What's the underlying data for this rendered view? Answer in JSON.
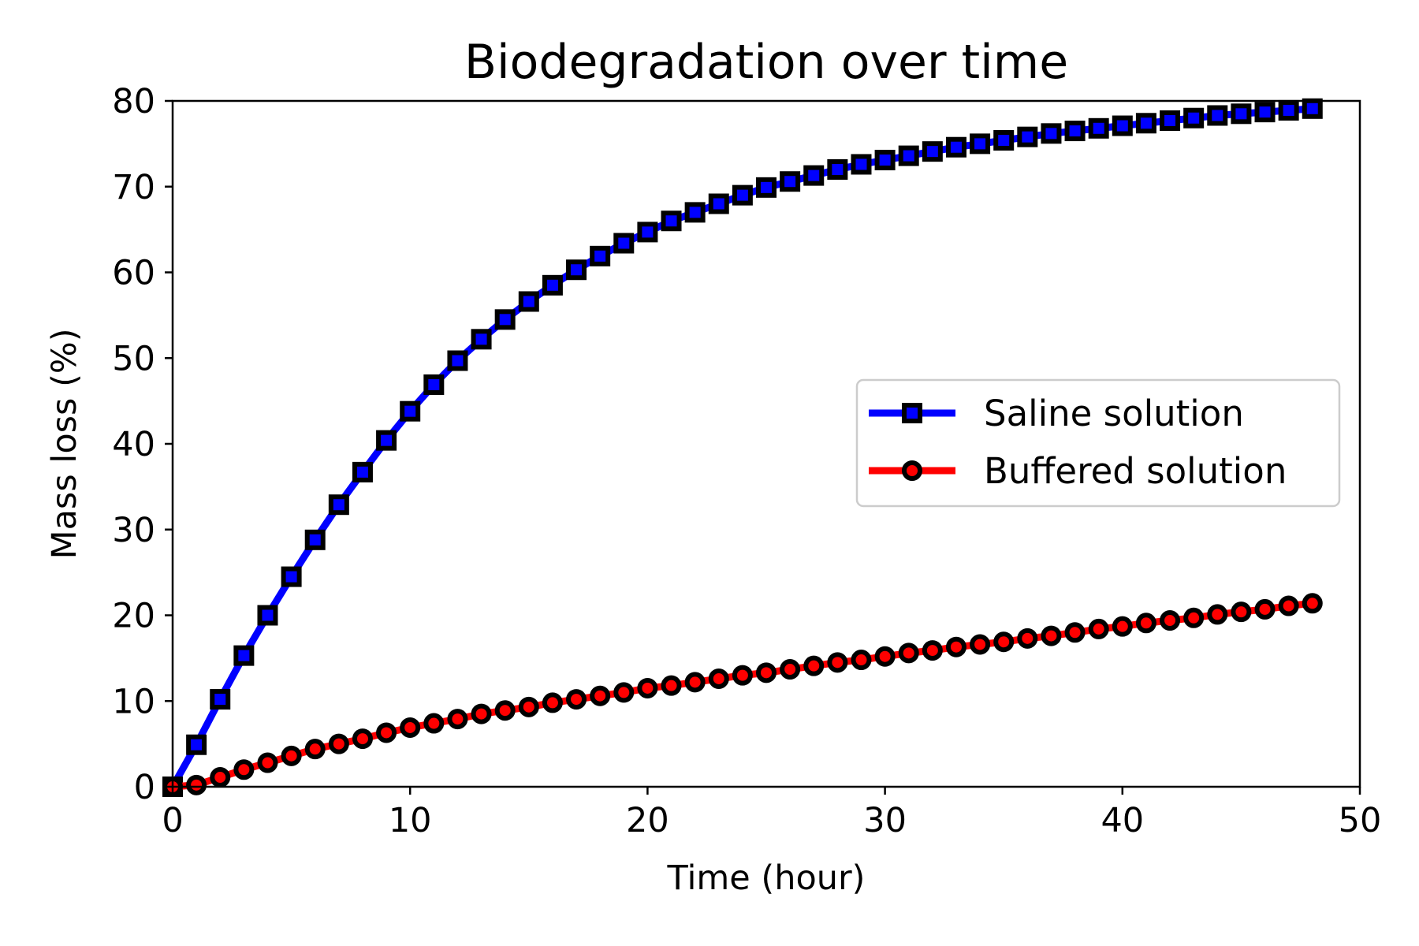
{
  "chart_data": {
    "type": "line",
    "title": "Biodegradation over time",
    "xlabel": "Time (hour)",
    "ylabel": "Mass loss (%)",
    "xlim": [
      0,
      50
    ],
    "ylim": [
      0,
      80
    ],
    "xticks": [
      0,
      10,
      20,
      30,
      40,
      50
    ],
    "yticks": [
      0,
      10,
      20,
      30,
      40,
      50,
      60,
      70,
      80
    ],
    "grid": false,
    "legend_position": "center-right",
    "x": [
      0,
      1,
      2,
      3,
      4,
      5,
      6,
      7,
      8,
      9,
      10,
      11,
      12,
      13,
      14,
      15,
      16,
      17,
      18,
      19,
      20,
      21,
      22,
      23,
      24,
      25,
      26,
      27,
      28,
      29,
      30,
      31,
      32,
      33,
      34,
      35,
      36,
      37,
      38,
      39,
      40,
      41,
      42,
      43,
      44,
      45,
      46,
      47,
      48
    ],
    "series": [
      {
        "name": "Saline solution",
        "color": "#0000ff",
        "marker": "square",
        "values": [
          0,
          4.9,
          10.2,
          15.3,
          20.0,
          24.5,
          28.8,
          32.9,
          36.7,
          40.4,
          43.8,
          46.9,
          49.7,
          52.2,
          54.5,
          56.6,
          58.5,
          60.3,
          61.9,
          63.4,
          64.7,
          66.0,
          67.0,
          68.0,
          69.0,
          69.9,
          70.6,
          71.3,
          72.0,
          72.6,
          73.1,
          73.6,
          74.1,
          74.6,
          75.0,
          75.4,
          75.8,
          76.2,
          76.5,
          76.8,
          77.1,
          77.4,
          77.7,
          78.0,
          78.3,
          78.5,
          78.7,
          78.9,
          79.1
        ]
      },
      {
        "name": "Buffered solution",
        "color": "#ff0000",
        "marker": "circle",
        "values": [
          0,
          0.2,
          1.1,
          2.0,
          2.8,
          3.6,
          4.4,
          5.0,
          5.6,
          6.3,
          6.9,
          7.4,
          7.9,
          8.5,
          8.9,
          9.3,
          9.8,
          10.2,
          10.6,
          11.0,
          11.5,
          11.8,
          12.2,
          12.6,
          13.0,
          13.3,
          13.7,
          14.1,
          14.5,
          14.8,
          15.2,
          15.6,
          15.9,
          16.3,
          16.6,
          16.9,
          17.3,
          17.6,
          18.0,
          18.4,
          18.7,
          19.1,
          19.4,
          19.7,
          20.1,
          20.4,
          20.7,
          21.1,
          21.4
        ]
      }
    ]
  }
}
